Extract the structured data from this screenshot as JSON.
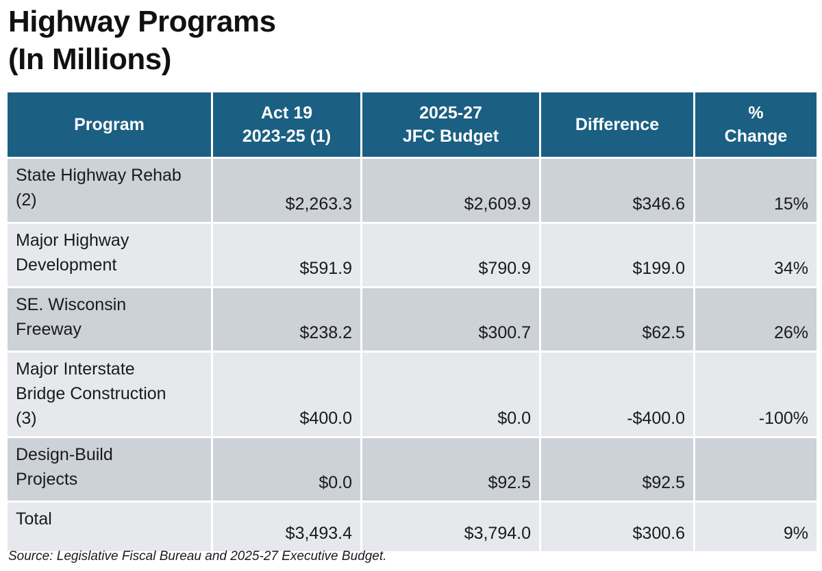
{
  "title": {
    "line1": "Highway Programs",
    "line2": "(In Millions)"
  },
  "table": {
    "headers": [
      {
        "line1": "Program",
        "line2": ""
      },
      {
        "line1": "Act 19",
        "line2": "2023-25 (1)"
      },
      {
        "line1": "2025-27",
        "line2": "JFC Budget"
      },
      {
        "line1": "Difference",
        "line2": ""
      },
      {
        "line1": "%",
        "line2": "Change"
      }
    ],
    "rows": [
      {
        "program": [
          "State Highway Rehab",
          "(2)"
        ],
        "act19": "$2,263.3",
        "jfc": "$2,609.9",
        "difference": "$346.6",
        "change": "15%"
      },
      {
        "program": [
          "Major Highway",
          "Development"
        ],
        "act19": "$591.9",
        "jfc": "$790.9",
        "difference": "$199.0",
        "change": "34%"
      },
      {
        "program": [
          "SE. Wisconsin",
          "Freeway"
        ],
        "act19": "$238.2",
        "jfc": "$300.7",
        "difference": "$62.5",
        "change": "26%"
      },
      {
        "program": [
          "Major Interstate",
          "Bridge Construction",
          "(3)"
        ],
        "act19": "$400.0",
        "jfc": "$0.0",
        "difference": "-$400.0",
        "change": "-100%"
      },
      {
        "program": [
          "Design-Build",
          "Projects"
        ],
        "act19": "$0.0",
        "jfc": "$92.5",
        "difference": "$92.5",
        "change": ""
      },
      {
        "program": [
          "Total"
        ],
        "act19": "$3,493.4",
        "jfc": "$3,794.0",
        "difference": "$300.6",
        "change": "9%"
      }
    ]
  },
  "source": "Source: Legislative Fiscal Bureau and 2025-27 Executive Budget.",
  "colors": {
    "header_bg": "#1b5f82",
    "row_dark": "#cdd1d8",
    "row_light": "#e6e8ec"
  }
}
